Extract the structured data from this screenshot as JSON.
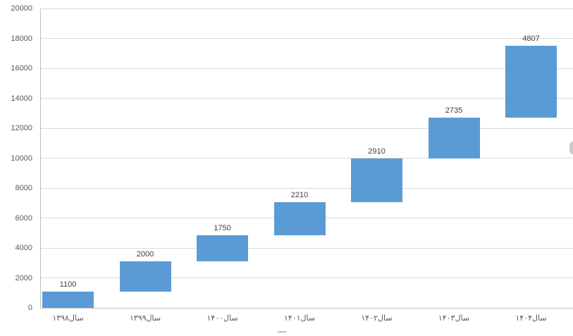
{
  "chart_data": {
    "type": "bar",
    "subtype": "waterfall-cumulative",
    "title": "",
    "xlabel": "",
    "ylabel": "",
    "categories": [
      "سال۱۳۹۸",
      "سال۱۳۹۹",
      "سال۱۴۰۰",
      "سال۱۴۰۱",
      "سال۱۴۰۲",
      "سال۱۴۰۳",
      "سال۱۴۰۴"
    ],
    "values": [
      1100,
      2000,
      1750,
      2210,
      2910,
      2735,
      4807
    ],
    "baselines": [
      0,
      1100,
      3100,
      4850,
      7060,
      9970,
      12705
    ],
    "cumulative_totals": [
      1100,
      3100,
      4850,
      7060,
      9970,
      12705,
      17512
    ],
    "data_labels": [
      "1100",
      "2000",
      "1750",
      "2210",
      "2910",
      "2735",
      "4807"
    ],
    "ylim": [
      0,
      20000
    ],
    "yticks": [
      0,
      2000,
      4000,
      6000,
      8000,
      10000,
      12000,
      14000,
      16000,
      18000,
      20000
    ],
    "grid": true,
    "legend": false,
    "bar_color": "#5B9BD5",
    "gridline_color": "#D9D9D9",
    "axis_line_color": "#BFBFBF",
    "tick_label_color": "#595959",
    "data_label_color": "#404040",
    "background": "#FFFFFF"
  }
}
